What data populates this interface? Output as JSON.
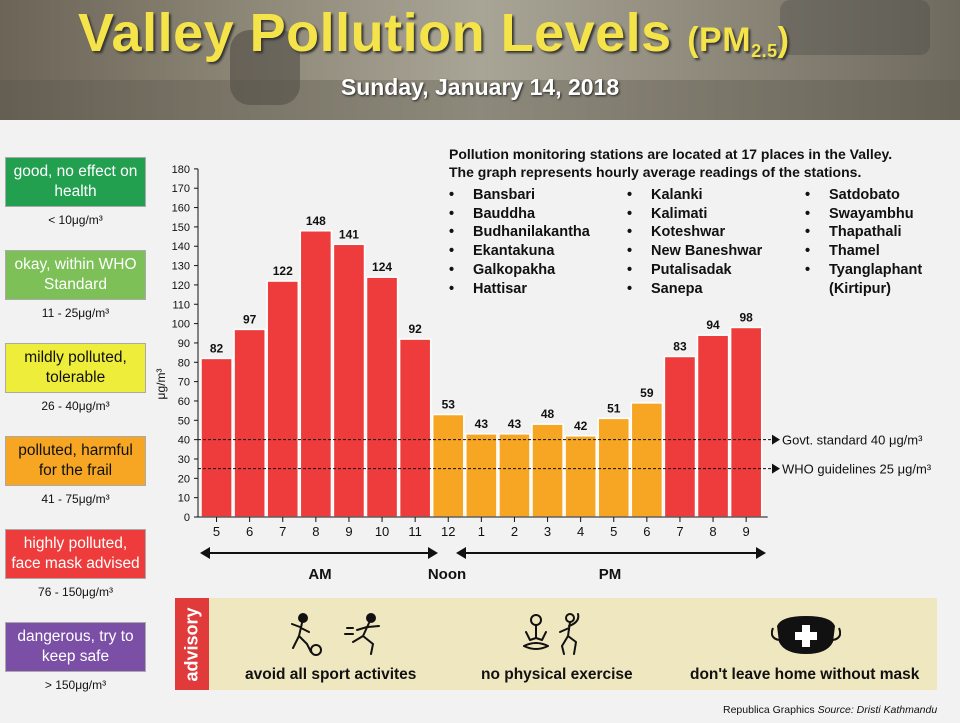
{
  "header": {
    "title_main": "Valley Pollution Levels",
    "title_pm": "(PM",
    "title_sub": "2.5",
    "title_close": ")",
    "date": "Sunday, January 14, 2018"
  },
  "legend": [
    {
      "label": "good, no effect on health",
      "range": "< 10μg/m³",
      "color": "#22a050"
    },
    {
      "label": "okay, within WHO Standard",
      "range": "11 - 25μg/m³",
      "color": "#7cc057"
    },
    {
      "label": "mildly polluted, tolerable",
      "range": "26 - 40μg/m³",
      "color": "#eded3a"
    },
    {
      "label": "polluted, harmful for the frail",
      "range": "41 - 75μg/m³",
      "color": "#f6a623"
    },
    {
      "label": "highly polluted, face mask advised",
      "range": "76 - 150μg/m³",
      "color": "#ee3b3b"
    },
    {
      "label": "dangerous, try to keep safe",
      "range": "> 150μg/m³",
      "color": "#7b4fa6"
    }
  ],
  "info": {
    "line1": "Pollution monitoring stations are located at 17 places in the Valley.",
    "line2": "The graph represents hourly average readings of the stations.",
    "bullet": "•",
    "stations_col1": [
      "Bansbari",
      "Bauddha",
      "Budhanilakantha",
      "Ekantakuna",
      "Galkopakha",
      "Hattisar"
    ],
    "stations_col2": [
      "Kalanki",
      "Kalimati",
      "Koteshwar",
      "New Baneshwar",
      "Putalisadak",
      "Sanepa"
    ],
    "stations_col3": [
      "Satdobato",
      "Swayambhu",
      "Thapathali",
      "Thamel",
      "Tyanglaphant",
      "(Kirtipur)"
    ]
  },
  "chart_data": {
    "type": "bar",
    "categories": [
      "5",
      "6",
      "7",
      "8",
      "9",
      "10",
      "11",
      "12",
      "1",
      "2",
      "3",
      "4",
      "5",
      "6",
      "7",
      "8",
      "9"
    ],
    "values": [
      82,
      97,
      122,
      148,
      141,
      124,
      92,
      53,
      43,
      43,
      48,
      42,
      51,
      59,
      83,
      94,
      98
    ],
    "bar_colors": [
      "#ee3b3b",
      "#ee3b3b",
      "#ee3b3b",
      "#ee3b3b",
      "#ee3b3b",
      "#ee3b3b",
      "#ee3b3b",
      "#f6a623",
      "#f6a623",
      "#f6a623",
      "#f6a623",
      "#f6a623",
      "#f6a623",
      "#f6a623",
      "#ee3b3b",
      "#ee3b3b",
      "#ee3b3b"
    ],
    "ylabel": "μg/m³",
    "ylim": [
      0,
      180
    ],
    "ytick_step": 10,
    "reference_lines": [
      {
        "label": "Govt. standard 40 μg/m³",
        "value": 40
      },
      {
        "label": "WHO guidelines 25 μg/m³",
        "value": 25
      }
    ],
    "periods": {
      "am": "AM",
      "noon": "Noon",
      "pm": "PM"
    }
  },
  "advisory": {
    "tab": "advisory",
    "items": [
      {
        "text": "avoid all sport activites",
        "icon": "sports-icon"
      },
      {
        "text": "no physical exercise",
        "icon": "exercise-icon"
      },
      {
        "text": "don't leave home without mask",
        "icon": "mask-icon"
      }
    ]
  },
  "credit": {
    "org": "Republica Graphics",
    "source": "Source: Dristi Kathmandu"
  }
}
